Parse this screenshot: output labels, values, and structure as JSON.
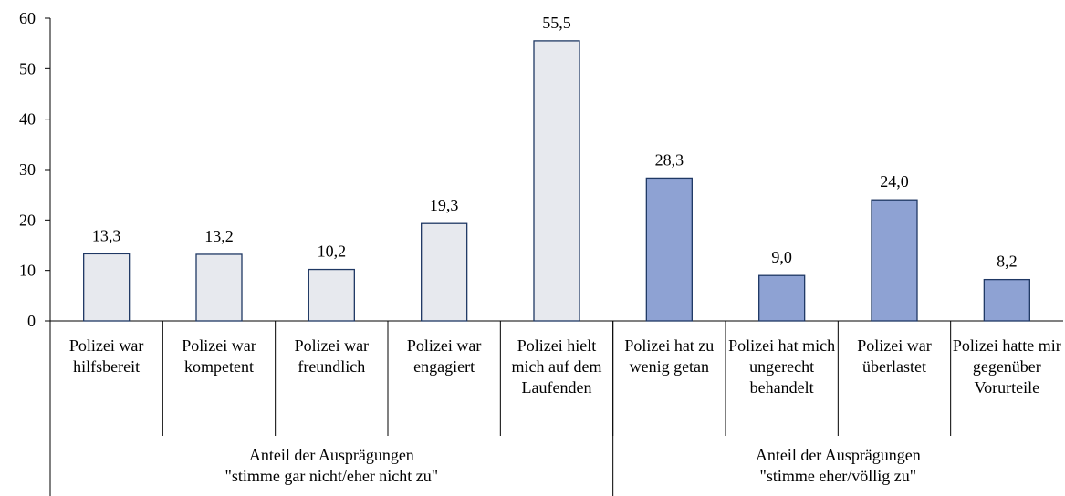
{
  "chart_data": {
    "type": "bar",
    "series": [
      {
        "name": "Anteil der Ausprägungen\n\"stimme gar nicht/eher nicht zu\"",
        "color": "#e7e9ee",
        "categories": [
          "Polizei war hilfsbereit",
          "Polizei war kompetent",
          "Polizei war freundlich",
          "Polizei war engagiert",
          "Polizei hielt mich auf dem Laufenden"
        ],
        "values": [
          13.3,
          13.2,
          10.2,
          19.3,
          55.5
        ],
        "value_labels": [
          "13,3",
          "13,2",
          "10,2",
          "19,3",
          "55,5"
        ]
      },
      {
        "name": "Anteil der Ausprägungen\n\"stimme eher/völlig zu\"",
        "color": "#8ea2d3",
        "categories": [
          "Polizei hat zu wenig getan",
          "Polizei hat mich ungerecht behandelt",
          "Polizei war überlastet",
          "Polizei hatte mir gegenüber Vorurteile"
        ],
        "values": [
          28.3,
          9.0,
          24.0,
          8.2
        ],
        "value_labels": [
          "28,3",
          "9,0",
          "24,0",
          "8,2"
        ]
      }
    ],
    "ylim": [
      0,
      60
    ],
    "yticks": [
      0,
      10,
      20,
      30,
      40,
      50,
      60
    ],
    "grid": false
  }
}
